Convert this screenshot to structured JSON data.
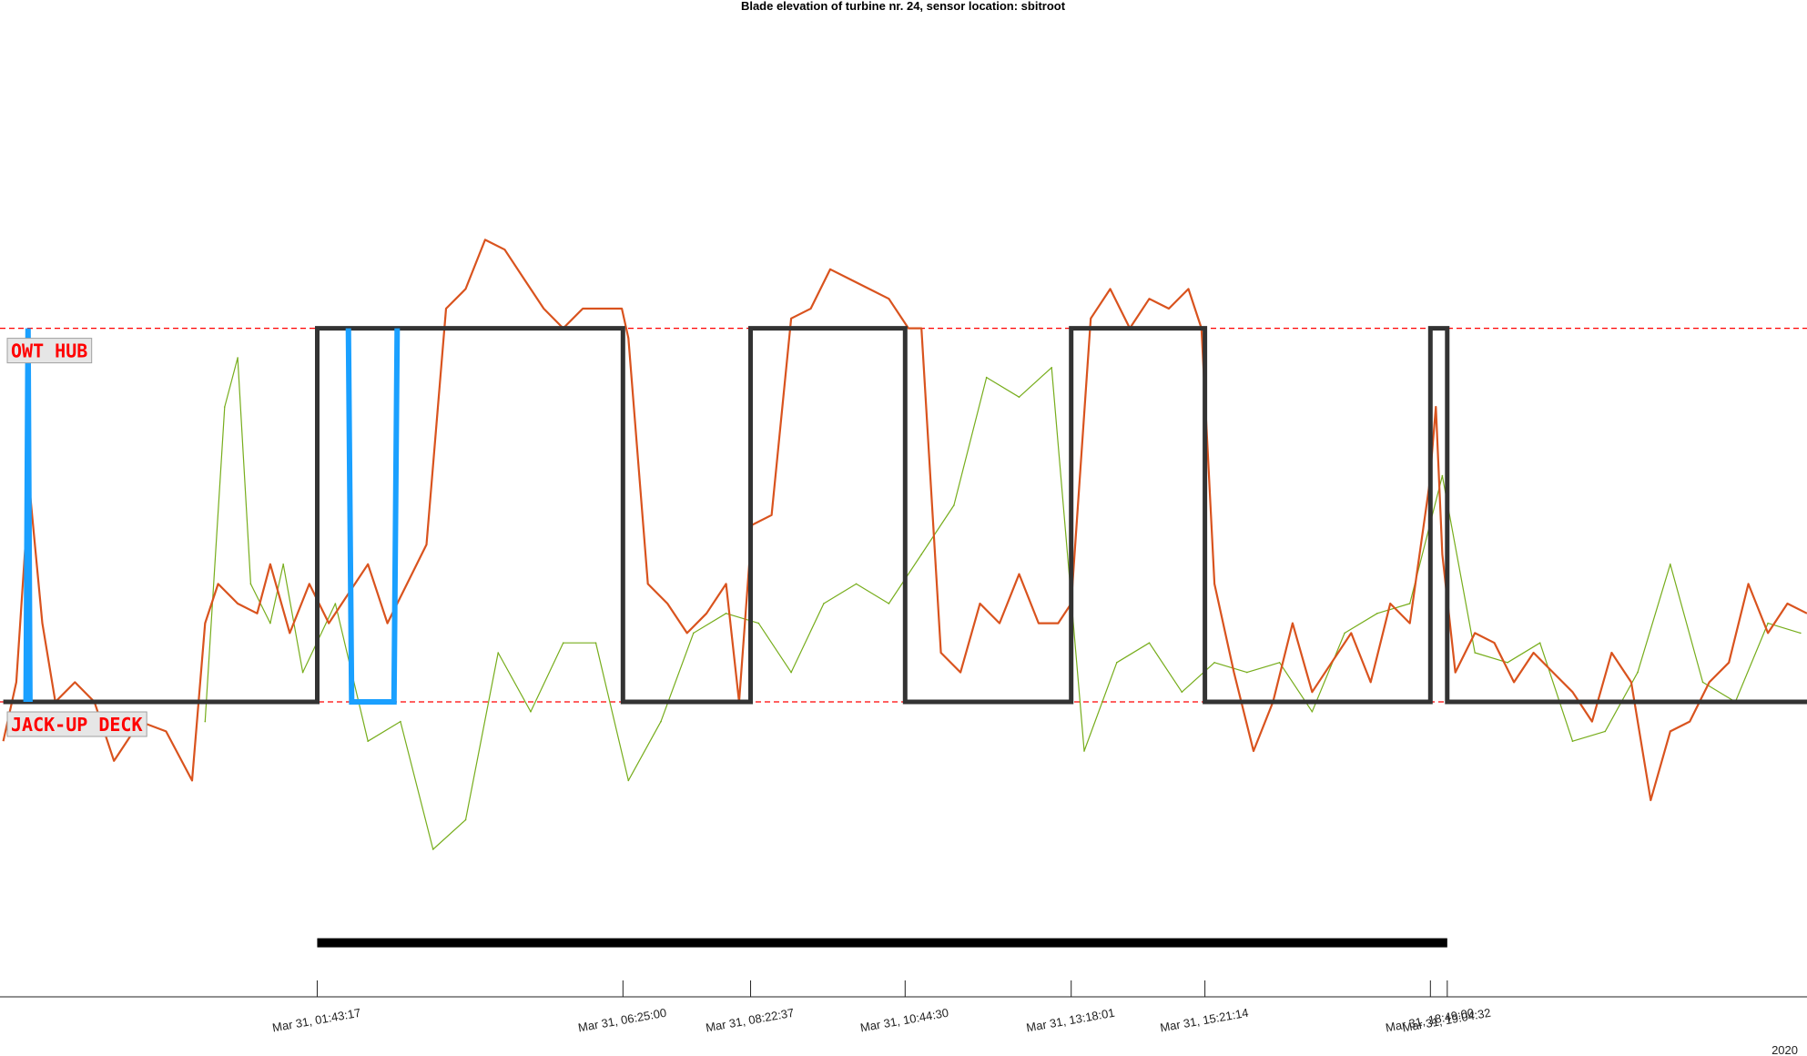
{
  "chart_data": {
    "type": "line",
    "title": "Blade elevation of turbine nr. 24, sensor location: sbitroot",
    "xlabel": "",
    "ylabel": "",
    "year_label": "2020",
    "x_range_hours": [
      -3.15,
      24.6
    ],
    "y_range": [
      0,
      1
    ],
    "levels": [
      {
        "name": "OWT HUB",
        "value": 0.68,
        "color": "#ff0000"
      },
      {
        "name": "JACK-UP DECK",
        "value": 0.3,
        "color": "#ff0000"
      }
    ],
    "ticks": [
      {
        "hour": 1.7214,
        "label": "Mar 31, 01:43:17"
      },
      {
        "hour": 6.4167,
        "label": "Mar 31, 06:25:00"
      },
      {
        "hour": 8.3769,
        "label": "Mar 31, 08:22:37"
      },
      {
        "hour": 10.75,
        "label": "Mar 31, 10:44:30"
      },
      {
        "hour": 13.3003,
        "label": "Mar 31, 13:18:01"
      },
      {
        "hour": 15.3539,
        "label": "Mar 31, 15:21:14"
      },
      {
        "hour": 18.8167,
        "label": "Mar 31, 18:49:00"
      },
      {
        "hour": 19.0756,
        "label": "Mar 31, 19:04:32"
      }
    ],
    "series": [
      {
        "type": "raw",
        "color": "#77ad1c",
        "x": [
          0,
          0.3,
          0.5,
          0.7,
          1.0,
          1.2,
          1.5,
          2.0,
          2.5,
          3.0,
          3.5,
          4.0,
          4.5,
          5.0,
          5.5,
          6.0,
          6.5,
          7.0,
          7.5,
          8.0,
          8.5,
          9.0,
          9.5,
          10.0,
          10.5,
          11.0,
          11.5,
          12.0,
          12.5,
          13.0,
          13.5,
          14.0,
          14.5,
          15.0,
          15.5,
          16.0,
          16.5,
          17.0,
          17.5,
          18.0,
          18.5,
          19.0,
          19.5,
          20.0,
          20.5,
          21.0,
          21.5,
          22.0,
          22.5,
          23.0,
          23.5,
          24.0,
          24.5
        ],
        "values": [
          0.28,
          0.6,
          0.65,
          0.42,
          0.38,
          0.44,
          0.33,
          0.4,
          0.26,
          0.28,
          0.15,
          0.18,
          0.35,
          0.29,
          0.36,
          0.36,
          0.22,
          0.28,
          0.37,
          0.39,
          0.38,
          0.33,
          0.4,
          0.42,
          0.4,
          0.45,
          0.5,
          0.63,
          0.61,
          0.64,
          0.25,
          0.34,
          0.36,
          0.31,
          0.34,
          0.33,
          0.34,
          0.29,
          0.37,
          0.39,
          0.4,
          0.53,
          0.35,
          0.34,
          0.36,
          0.26,
          0.27,
          0.33,
          0.44,
          0.32,
          0.3,
          0.38,
          0.37
        ]
      },
      {
        "type": "smoothed",
        "color": "#d9531e",
        "x": [
          -3.1,
          -2.9,
          -2.7,
          -2.5,
          -2.3,
          -2.0,
          -1.7,
          -1.4,
          -1.0,
          -0.6,
          -0.2,
          0.0,
          0.2,
          0.5,
          0.8,
          1.0,
          1.3,
          1.6,
          1.9,
          2.2,
          2.5,
          2.8,
          3.1,
          3.4,
          3.7,
          4.0,
          4.3,
          4.6,
          4.9,
          5.2,
          5.5,
          5.8,
          6.1,
          6.4,
          6.5,
          6.8,
          7.1,
          7.4,
          7.7,
          8.0,
          8.2,
          8.4,
          8.7,
          9.0,
          9.3,
          9.6,
          9.9,
          10.2,
          10.5,
          10.8,
          11.0,
          11.3,
          11.6,
          11.9,
          12.2,
          12.5,
          12.8,
          13.1,
          13.3,
          13.6,
          13.9,
          14.2,
          14.5,
          14.8,
          15.1,
          15.3,
          15.5,
          15.8,
          16.1,
          16.4,
          16.7,
          17.0,
          17.3,
          17.6,
          17.9,
          18.2,
          18.5,
          18.8,
          18.9,
          19.0,
          19.2,
          19.5,
          19.8,
          20.1,
          20.4,
          20.7,
          21.0,
          21.3,
          21.6,
          21.9,
          22.2,
          22.5,
          22.8,
          23.1,
          23.4,
          23.7,
          24.0,
          24.3,
          24.6
        ],
        "values": [
          0.26,
          0.32,
          0.52,
          0.38,
          0.3,
          0.32,
          0.3,
          0.24,
          0.28,
          0.27,
          0.22,
          0.38,
          0.42,
          0.4,
          0.39,
          0.44,
          0.37,
          0.42,
          0.38,
          0.41,
          0.44,
          0.38,
          0.42,
          0.46,
          0.7,
          0.72,
          0.77,
          0.76,
          0.73,
          0.7,
          0.68,
          0.7,
          0.7,
          0.7,
          0.67,
          0.42,
          0.4,
          0.37,
          0.39,
          0.42,
          0.3,
          0.48,
          0.49,
          0.69,
          0.7,
          0.74,
          0.73,
          0.72,
          0.71,
          0.68,
          0.68,
          0.35,
          0.33,
          0.4,
          0.38,
          0.43,
          0.38,
          0.38,
          0.4,
          0.69,
          0.72,
          0.68,
          0.71,
          0.7,
          0.72,
          0.68,
          0.42,
          0.33,
          0.25,
          0.3,
          0.38,
          0.31,
          0.34,
          0.37,
          0.32,
          0.4,
          0.38,
          0.52,
          0.6,
          0.45,
          0.33,
          0.37,
          0.36,
          0.32,
          0.35,
          0.33,
          0.31,
          0.28,
          0.35,
          0.32,
          0.2,
          0.27,
          0.28,
          0.32,
          0.34,
          0.42,
          0.37,
          0.4,
          0.39
        ]
      },
      {
        "type": "state",
        "color": "#333333",
        "x": [
          -3.1,
          1.7214,
          1.7214,
          6.4167,
          6.4167,
          8.3769,
          8.3769,
          10.75,
          10.75,
          13.3003,
          13.3003,
          15.3539,
          15.3539,
          18.8167,
          18.8167,
          19.0756,
          19.0756,
          24.6
        ],
        "values": [
          0.3,
          0.3,
          0.68,
          0.68,
          0.3,
          0.3,
          0.68,
          0.68,
          0.3,
          0.3,
          0.68,
          0.68,
          0.3,
          0.3,
          0.68,
          0.68,
          0.3,
          0.3
        ]
      },
      {
        "type": "highlight",
        "color": "#1aa0ff",
        "segments": [
          {
            "x": [
              -2.75,
              -2.72,
              -2.72,
              -2.69
            ],
            "values": [
              0.3,
              0.68,
              0.68,
              0.3
            ]
          },
          {
            "x": [
              2.2,
              2.25,
              2.9,
              2.95
            ],
            "values": [
              0.68,
              0.3,
              0.3,
              0.68
            ]
          }
        ]
      }
    ],
    "range_bar": {
      "x": [
        1.7214,
        19.0756
      ],
      "value": 0.055,
      "color": "#000000"
    }
  }
}
